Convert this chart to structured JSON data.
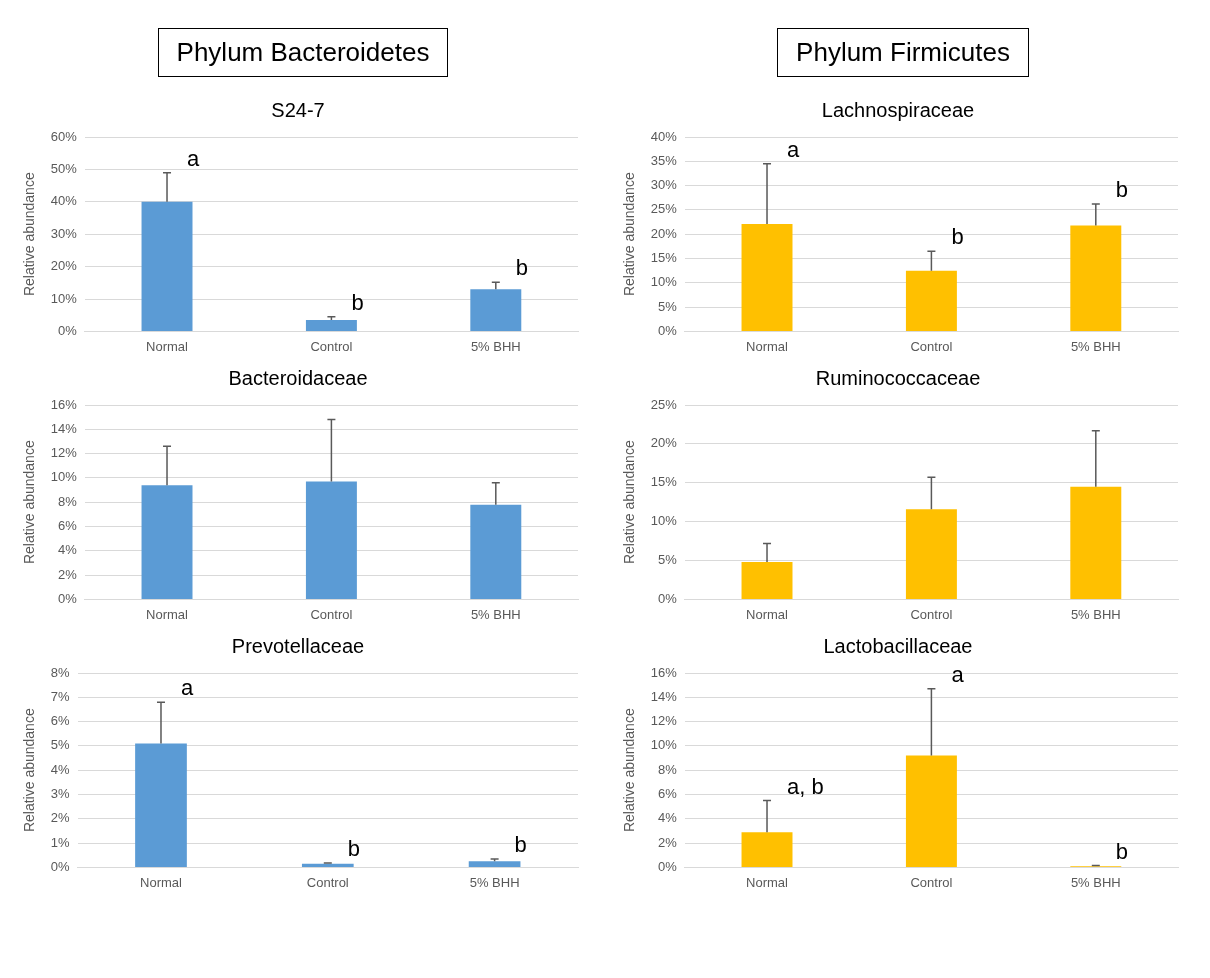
{
  "chart_data": [
    {
      "type": "bar",
      "title": "S24-7",
      "ylabel": "Relative abundance",
      "categories": [
        "Normal",
        "Control",
        "5% BHH"
      ],
      "values": [
        40,
        3.5,
        13
      ],
      "color": "#5b9bd5",
      "errors": [
        [
          40,
          49
        ],
        [
          3.5,
          4.5
        ],
        [
          13,
          15.2
        ]
      ],
      "ylim": [
        0,
        60
      ],
      "yticks": [
        {
          "value": 0,
          "label": "0%"
        },
        {
          "value": 10,
          "label": "10%"
        },
        {
          "value": 20,
          "label": "20%"
        },
        {
          "value": 30,
          "label": "30%"
        },
        {
          "value": 40,
          "label": "40%"
        },
        {
          "value": 50,
          "label": "50%"
        },
        {
          "value": 60,
          "label": "60%"
        }
      ],
      "grid": "y",
      "annotations": [
        "Phylum Bacteroidetes",
        {
          "text": "a",
          "x": "Normal",
          "y": 49
        },
        {
          "text": "b",
          "x": "Control",
          "y": 4.5
        },
        {
          "text": "b",
          "x": "5% BHH",
          "y": 15.2
        }
      ]
    },
    {
      "type": "bar",
      "title": "Bacteroidaceae",
      "ylabel": "Relative abundance",
      "categories": [
        "Normal",
        "Control",
        "5% BHH"
      ],
      "values": [
        9.4,
        9.7,
        7.8
      ],
      "color": "#5b9bd5",
      "errors": [
        [
          9.4,
          12.6
        ],
        [
          9.7,
          14.8
        ],
        [
          7.8,
          9.6
        ]
      ],
      "ylim": [
        0,
        16
      ],
      "yticks": [
        {
          "value": 0,
          "label": "0%"
        },
        {
          "value": 2,
          "label": "2%"
        },
        {
          "value": 4,
          "label": "4%"
        },
        {
          "value": 6,
          "label": "6%"
        },
        {
          "value": 8,
          "label": "8%"
        },
        {
          "value": 10,
          "label": "10%"
        },
        {
          "value": 12,
          "label": "12%"
        },
        {
          "value": 14,
          "label": "14%"
        },
        {
          "value": 16,
          "label": "16%"
        }
      ],
      "grid": "y"
    },
    {
      "type": "bar",
      "title": "Prevotellaceae",
      "ylabel": "Relative abundance",
      "categories": [
        "Normal",
        "Control",
        "5% BHH"
      ],
      "values": [
        5.1,
        0.15,
        0.25
      ],
      "color": "#5b9bd5",
      "errors": [
        [
          5.1,
          6.8
        ],
        [
          0.15,
          0.18
        ],
        [
          0.25,
          0.35
        ]
      ],
      "ylim": [
        0,
        8
      ],
      "yticks": [
        {
          "value": 0,
          "label": "0%"
        },
        {
          "value": 1,
          "label": "1%"
        },
        {
          "value": 2,
          "label": "2%"
        },
        {
          "value": 3,
          "label": "3%"
        },
        {
          "value": 4,
          "label": "4%"
        },
        {
          "value": 5,
          "label": "5%"
        },
        {
          "value": 6,
          "label": "6%"
        },
        {
          "value": 7,
          "label": "7%"
        },
        {
          "value": 8,
          "label": "8%"
        }
      ],
      "grid": "y",
      "annotations": [
        {
          "text": "a",
          "x": "Normal",
          "y": 6.8
        },
        {
          "text": "b",
          "x": "Control",
          "y": 0.18
        },
        {
          "text": "b",
          "x": "5% BHH",
          "y": 0.35
        }
      ]
    },
    {
      "type": "bar",
      "title": "Lachnospiraceae",
      "ylabel": "Relative abundance",
      "categories": [
        "Normal",
        "Control",
        "5% BHH"
      ],
      "values": [
        22.1,
        12.5,
        21.8
      ],
      "color": "#ffc000",
      "errors": [
        [
          22.1,
          34.5
        ],
        [
          12.5,
          16.5
        ],
        [
          21.8,
          26.2
        ]
      ],
      "ylim": [
        0,
        40
      ],
      "yticks": [
        {
          "value": 0,
          "label": "0%"
        },
        {
          "value": 5,
          "label": "5%"
        },
        {
          "value": 10,
          "label": "10%"
        },
        {
          "value": 15,
          "label": "15%"
        },
        {
          "value": 20,
          "label": "20%"
        },
        {
          "value": 25,
          "label": "25%"
        },
        {
          "value": 30,
          "label": "30%"
        },
        {
          "value": 35,
          "label": "35%"
        },
        {
          "value": 40,
          "label": "40%"
        }
      ],
      "grid": "y",
      "annotations": [
        "Phylum Firmicutes",
        {
          "text": "a",
          "x": "Normal",
          "y": 34.5
        },
        {
          "text": "b",
          "x": "Control",
          "y": 16.5
        },
        {
          "text": "b",
          "x": "5% BHH",
          "y": 26.2
        }
      ]
    },
    {
      "type": "bar",
      "title": "Ruminococcaceae",
      "ylabel": "Relative abundance",
      "categories": [
        "Normal",
        "Control",
        "5% BHH"
      ],
      "values": [
        4.8,
        11.6,
        14.5
      ],
      "color": "#ffc000",
      "errors": [
        [
          4.8,
          7.2
        ],
        [
          11.6,
          15.7
        ],
        [
          14.5,
          21.7
        ]
      ],
      "ylim": [
        0,
        25
      ],
      "yticks": [
        {
          "value": 0,
          "label": "0%"
        },
        {
          "value": 5,
          "label": "5%"
        },
        {
          "value": 10,
          "label": "10%"
        },
        {
          "value": 15,
          "label": "15%"
        },
        {
          "value": 20,
          "label": "20%"
        },
        {
          "value": 25,
          "label": "25%"
        }
      ],
      "grid": "y"
    },
    {
      "type": "bar",
      "title": "Lactobacillaceae",
      "ylabel": "Relative abundance",
      "categories": [
        "Normal",
        "Control",
        "5% BHH"
      ],
      "values": [
        2.9,
        9.2,
        0.1
      ],
      "color": "#ffc000",
      "errors": [
        [
          2.9,
          5.5
        ],
        [
          9.2,
          14.7
        ],
        [
          0.1,
          0.15
        ]
      ],
      "ylim": [
        0,
        16
      ],
      "yticks": [
        {
          "value": 0,
          "label": "0%"
        },
        {
          "value": 2,
          "label": "2%"
        },
        {
          "value": 4,
          "label": "4%"
        },
        {
          "value": 6,
          "label": "6%"
        },
        {
          "value": 8,
          "label": "8%"
        },
        {
          "value": 10,
          "label": "10%"
        },
        {
          "value": 12,
          "label": "12%"
        },
        {
          "value": 14,
          "label": "14%"
        },
        {
          "value": 16,
          "label": "16%"
        }
      ],
      "grid": "y",
      "annotations": [
        {
          "text": "a, b",
          "x": "Normal",
          "y": 5.5
        },
        {
          "text": "a",
          "x": "Control",
          "y": 14.7
        },
        {
          "text": "b",
          "x": "5% BHH",
          "y": 0.15
        }
      ]
    }
  ]
}
